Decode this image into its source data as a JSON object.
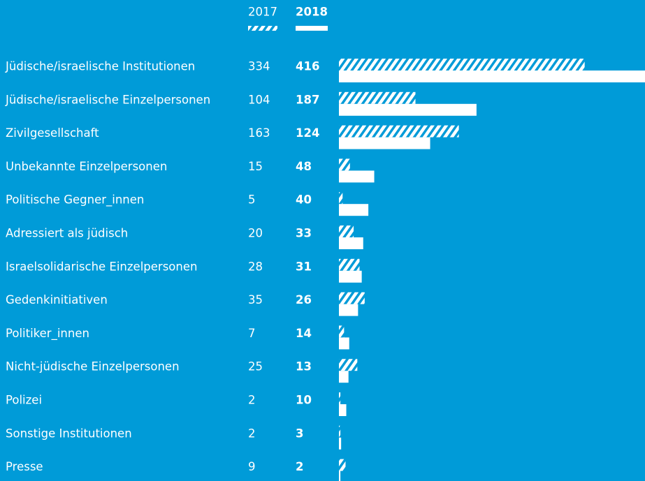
{
  "chart_data": {
    "type": "hbar",
    "categories": [
      "Jüdische/israelische Institutionen",
      "Jüdische/israelische Einzelpersonen",
      "Zivilgesellschaft",
      "Unbekannte Einzelpersonen",
      "Politische Gegner_innen",
      "Adressiert als jüdisch",
      "Israelsolidarische Einzelpersonen",
      "Gedenkinitiativen",
      "Politiker_innen",
      "Nicht-jüdische Einzelpersonen",
      "Polizei",
      "Sonstige Institutionen",
      "Presse"
    ],
    "series": [
      {
        "name": "2017",
        "color": "#ffffff",
        "fill": "hatched",
        "values": [
          334,
          104,
          163,
          15,
          5,
          20,
          28,
          35,
          7,
          25,
          2,
          2,
          9
        ]
      },
      {
        "name": "2018",
        "color": "#ffffff",
        "fill": "solid",
        "values": [
          416,
          187,
          124,
          48,
          40,
          33,
          31,
          26,
          14,
          13,
          10,
          3,
          2
        ]
      }
    ],
    "background": "#009bd8"
  }
}
